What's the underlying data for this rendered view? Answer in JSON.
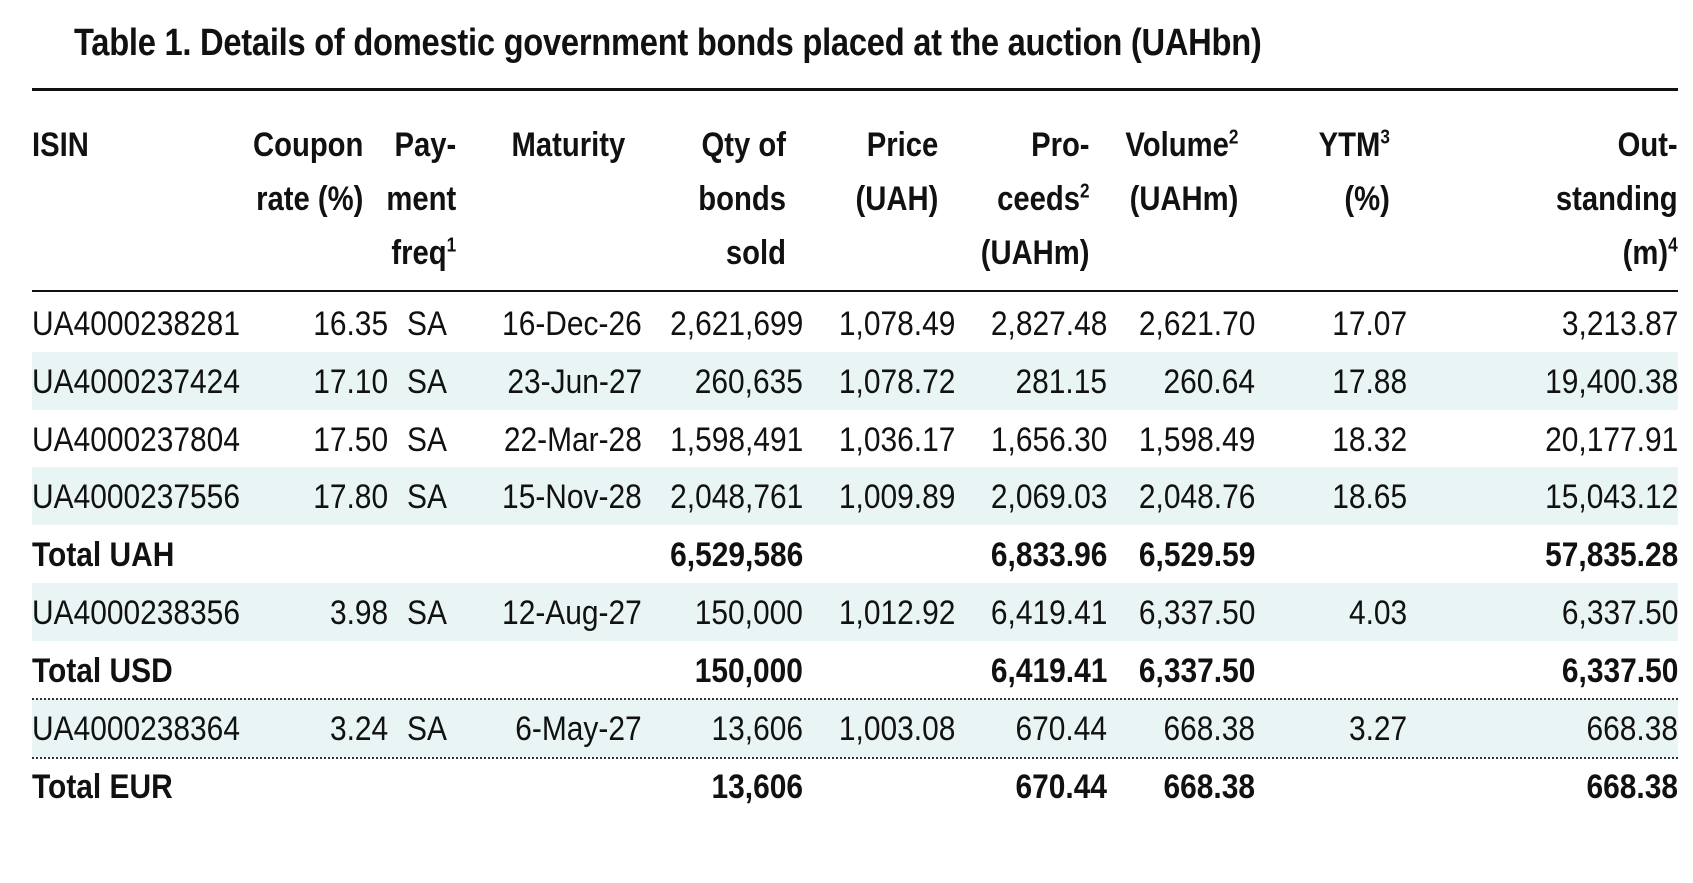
{
  "title": "Table 1. Details of domestic government bonds placed at the auction (UAHbn)",
  "headers": {
    "isin": [
      "ISIN"
    ],
    "coupon": [
      "Coupon",
      "rate (%)"
    ],
    "freq": [
      "Pay-",
      "ment",
      "freq"
    ],
    "freq_sup": "1",
    "maturity": [
      "Maturity"
    ],
    "qty": [
      "Qty of",
      "bonds",
      "sold"
    ],
    "price": [
      "Price",
      "(UAH)"
    ],
    "proceeds": [
      "Pro-",
      "ceeds",
      "(UAHm)"
    ],
    "proceeds_sup": "2",
    "volume": [
      "Volume",
      "(UAHm)"
    ],
    "volume_sup": "2",
    "ytm": [
      "YTM",
      "(%)"
    ],
    "ytm_sup": "3",
    "outstanding": [
      "Out-",
      "standing",
      "(m)"
    ],
    "outstanding_sup": "4"
  },
  "rows": [
    {
      "isin": "UA4000238281",
      "coupon": "16.35",
      "freq": "SA",
      "maturity": "16-Dec-26",
      "qty": "2,621,699",
      "price": "1,078.49",
      "proceeds": "2,827.48",
      "volume": "2,621.70",
      "ytm": "17.07",
      "outstanding": "3,213.87"
    },
    {
      "isin": "UA4000237424",
      "coupon": "17.10",
      "freq": "SA",
      "maturity": "23-Jun-27",
      "qty": "260,635",
      "price": "1,078.72",
      "proceeds": "281.15",
      "volume": "260.64",
      "ytm": "17.88",
      "outstanding": "19,400.38"
    },
    {
      "isin": "UA4000237804",
      "coupon": "17.50",
      "freq": "SA",
      "maturity": "22-Mar-28",
      "qty": "1,598,491",
      "price": "1,036.17",
      "proceeds": "1,656.30",
      "volume": "1,598.49",
      "ytm": "18.32",
      "outstanding": "20,177.91"
    },
    {
      "isin": "UA4000237556",
      "coupon": "17.80",
      "freq": "SA",
      "maturity": "15-Nov-28",
      "qty": "2,048,761",
      "price": "1,009.89",
      "proceeds": "2,069.03",
      "volume": "2,048.76",
      "ytm": "18.65",
      "outstanding": "15,043.12"
    },
    {
      "isin": "Total UAH",
      "coupon": "",
      "freq": "",
      "maturity": "",
      "qty": "6,529,586",
      "price": "",
      "proceeds": "6,833.96",
      "volume": "6,529.59",
      "ytm": "",
      "outstanding": "57,835.28"
    },
    {
      "isin": "UA4000238356",
      "coupon": "3.98",
      "freq": "SA",
      "maturity": "12-Aug-27",
      "qty": "150,000",
      "price": "1,012.92",
      "proceeds": "6,419.41",
      "volume": "6,337.50",
      "ytm": "4.03",
      "outstanding": "6,337.50"
    },
    {
      "isin": "Total USD",
      "coupon": "",
      "freq": "",
      "maturity": "",
      "qty": "150,000",
      "price": "",
      "proceeds": "6,419.41",
      "volume": "6,337.50",
      "ytm": "",
      "outstanding": "6,337.50"
    },
    {
      "isin": "UA4000238364",
      "coupon": "3.24",
      "freq": "SA",
      "maturity": "6-May-27",
      "qty": "13,606",
      "price": "1,003.08",
      "proceeds": "670.44",
      "volume": "668.38",
      "ytm": "3.27",
      "outstanding": "668.38"
    },
    {
      "isin": "Total EUR",
      "coupon": "",
      "freq": "",
      "maturity": "",
      "qty": "13,606",
      "price": "",
      "proceeds": "670.44",
      "volume": "668.38",
      "ytm": "",
      "outstanding": "668.38"
    }
  ],
  "colors": {
    "shade": "#e9f4f4",
    "text": "#111111"
  }
}
